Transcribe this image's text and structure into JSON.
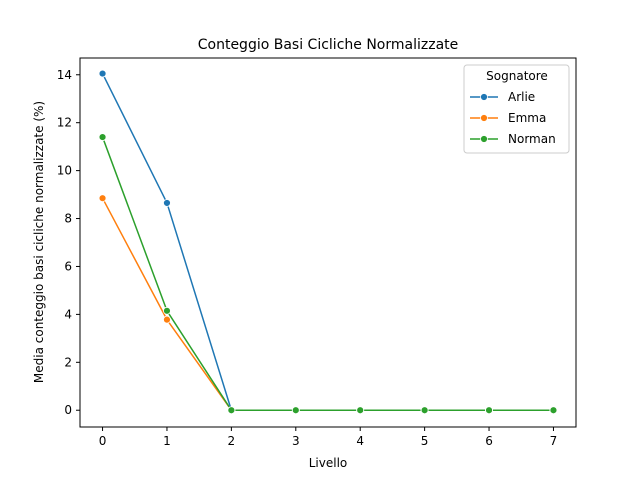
{
  "chart_data": {
    "type": "line",
    "title": "Conteggio Basi Cicliche Normalizzate",
    "xlabel": "Livello",
    "ylabel": "Media conteggio basi cicliche normalizzate (%)",
    "x": [
      0,
      1,
      2,
      3,
      4,
      5,
      6,
      7
    ],
    "xticks": [
      "0",
      "1",
      "2",
      "3",
      "4",
      "5",
      "6",
      "7"
    ],
    "yticks": [
      "0",
      "2",
      "4",
      "6",
      "8",
      "10",
      "12",
      "14"
    ],
    "xlim": [
      -0.35,
      7.35
    ],
    "ylim": [
      -0.7,
      14.7
    ],
    "grid": false,
    "legend": {
      "title": "Sognatore",
      "placement": "top-right"
    },
    "series": [
      {
        "name": "Arlie",
        "color": "#1f77b4",
        "values": [
          14.05,
          8.65,
          0,
          0,
          0,
          0,
          0,
          0
        ]
      },
      {
        "name": "Emma",
        "color": "#ff7f0e",
        "values": [
          8.85,
          3.78,
          0,
          0,
          0,
          0,
          0,
          0
        ]
      },
      {
        "name": "Norman",
        "color": "#2ca02c",
        "values": [
          11.4,
          4.15,
          0,
          0,
          0,
          0,
          0,
          0
        ]
      }
    ]
  }
}
